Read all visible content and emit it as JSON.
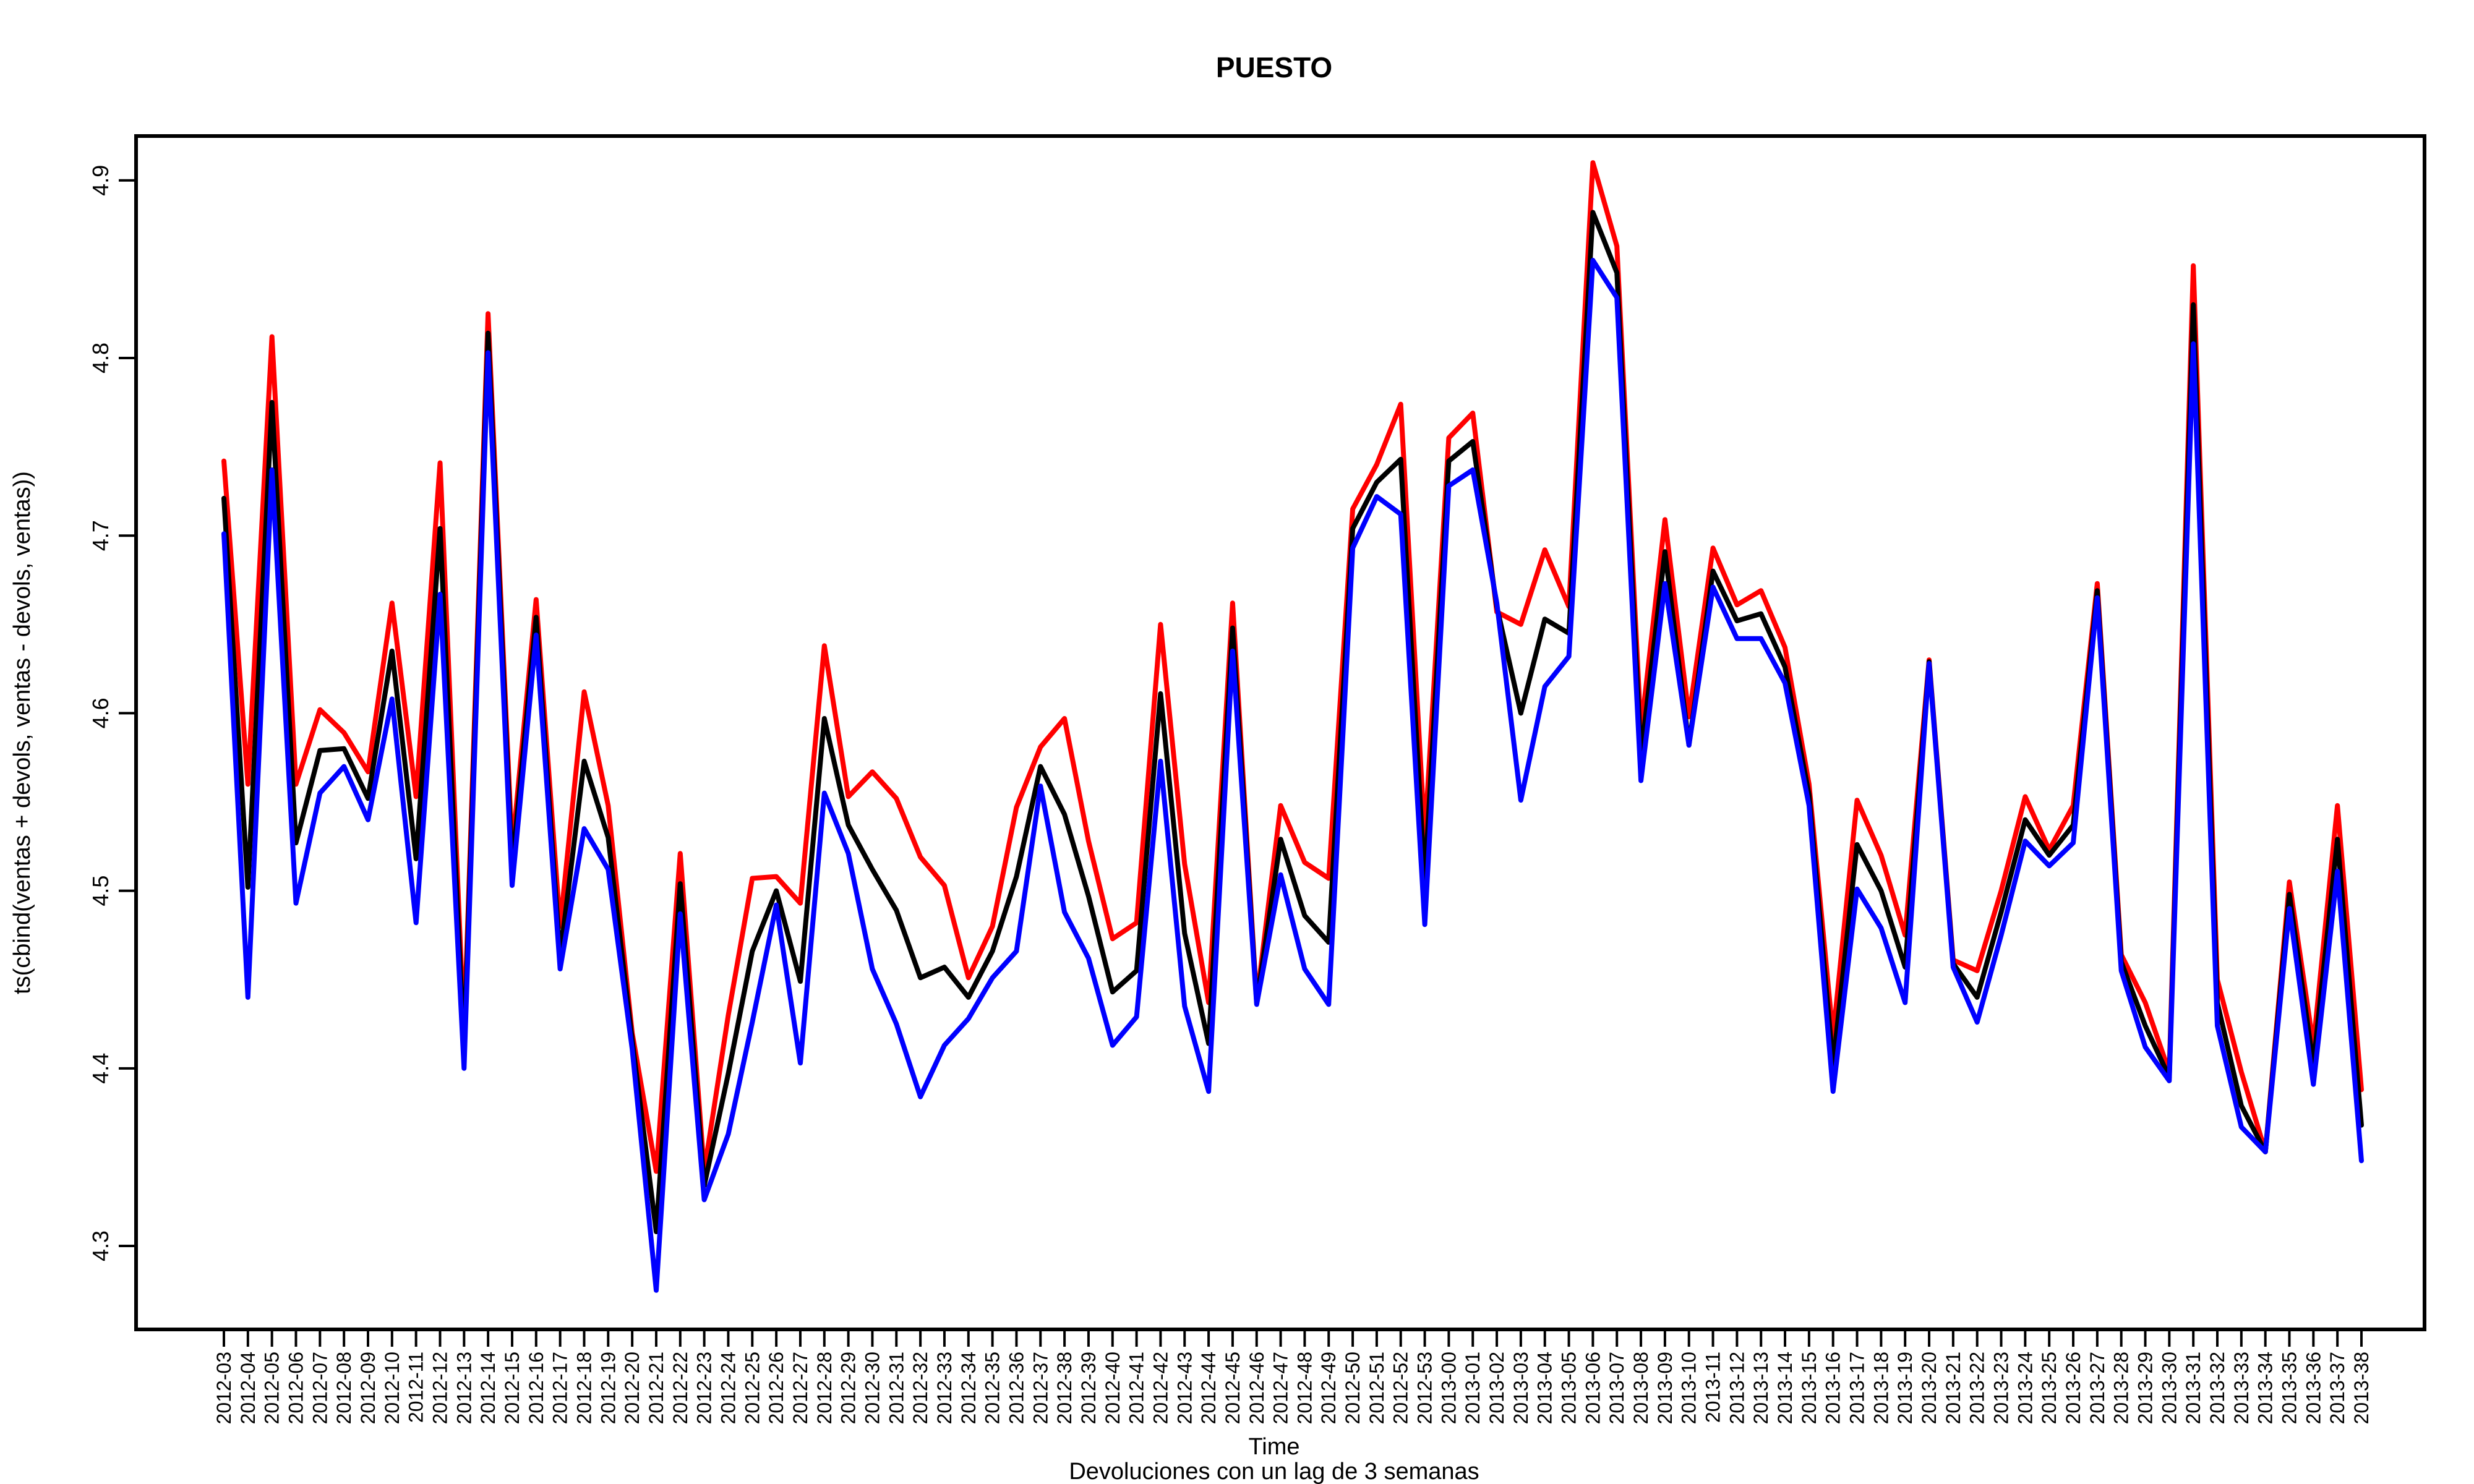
{
  "chart_data": {
    "type": "line",
    "title": "PUESTO",
    "xlabel": "Time",
    "ylabel": "ts(cbind(ventas + devols, ventas - devols, ventas))",
    "subtitle": "Devoluciones con un lag de 3 semanas",
    "ylim": [
      4.253,
      4.925
    ],
    "y_ticks": [
      4.3,
      4.4,
      4.5,
      4.6,
      4.7,
      4.8,
      4.9
    ],
    "x_tick_labels": [
      "2012-03",
      "2012-04",
      "2012-05",
      "2012-06",
      "2012-07",
      "2012-08",
      "2012-09",
      "2012-10",
      "2012-11",
      "2012-12",
      "2012-13",
      "2012-14",
      "2012-15",
      "2012-16",
      "2012-17",
      "2012-18",
      "2012-19",
      "2012-20",
      "2012-21",
      "2012-22",
      "2012-23",
      "2012-24",
      "2012-25",
      "2012-26",
      "2012-27",
      "2012-28",
      "2012-29",
      "2012-30",
      "2012-31",
      "2012-32",
      "2012-33",
      "2012-34",
      "2012-35",
      "2012-36",
      "2012-37",
      "2012-38",
      "2012-39",
      "2012-40",
      "2012-41",
      "2012-42",
      "2012-43",
      "2012-44",
      "2012-45",
      "2012-46",
      "2012-47",
      "2012-48",
      "2012-49",
      "2012-50",
      "2012-51",
      "2012-52",
      "2012-53",
      "2013-00",
      "2013-01",
      "2013-02",
      "2013-03",
      "2013-04",
      "2013-05",
      "2013-06",
      "2013-07",
      "2013-08",
      "2013-09",
      "2013-10",
      "2013-11",
      "2013-12",
      "2013-13",
      "2013-14",
      "2013-15",
      "2013-16",
      "2013-17",
      "2013-18",
      "2013-19",
      "2013-20",
      "2013-21",
      "2013-22",
      "2013-23",
      "2013-24",
      "2013-25",
      "2013-26",
      "2013-27",
      "2013-28",
      "2013-29",
      "2013-30",
      "2013-31",
      "2013-32",
      "2013-33",
      "2013-34",
      "2013-35",
      "2013-36",
      "2013-37",
      "2013-38"
    ],
    "grid": false,
    "legend": "none",
    "series": [
      {
        "color": "#ff0000",
        "values": [
          4.742,
          4.56,
          4.812,
          4.56,
          4.602,
          4.589,
          4.567,
          4.662,
          4.553,
          4.741,
          4.42,
          4.825,
          4.523,
          4.664,
          4.48,
          4.612,
          4.548,
          4.42,
          4.342,
          4.521,
          4.342,
          4.43,
          4.507,
          4.508,
          4.493,
          4.638,
          4.553,
          4.567,
          4.552,
          4.519,
          4.503,
          4.451,
          4.48,
          4.547,
          4.581,
          4.597,
          4.528,
          4.473,
          4.482,
          4.65,
          4.515,
          4.437,
          4.662,
          4.438,
          4.548,
          4.516,
          4.507,
          4.715,
          4.74,
          4.774,
          4.53,
          4.755,
          4.769,
          4.657,
          4.65,
          4.692,
          4.66,
          4.91,
          4.863,
          4.59,
          4.709,
          4.598,
          4.693,
          4.661,
          4.669,
          4.637,
          4.56,
          4.418,
          4.551,
          4.52,
          4.475,
          4.63,
          4.461,
          4.455,
          4.5,
          4.553,
          4.523,
          4.548,
          4.673,
          4.464,
          4.437,
          4.398,
          4.852,
          4.45,
          4.398,
          4.353,
          4.505,
          4.413,
          4.548,
          4.388
        ]
      },
      {
        "color": "#000000",
        "values": [
          4.721,
          4.502,
          4.775,
          4.527,
          4.579,
          4.58,
          4.552,
          4.635,
          4.518,
          4.704,
          4.41,
          4.814,
          4.513,
          4.654,
          4.463,
          4.573,
          4.53,
          4.416,
          4.308,
          4.504,
          4.334,
          4.397,
          4.466,
          4.5,
          4.449,
          4.597,
          4.537,
          4.512,
          4.489,
          4.451,
          4.457,
          4.44,
          4.466,
          4.508,
          4.57,
          4.543,
          4.497,
          4.443,
          4.455,
          4.611,
          4.476,
          4.414,
          4.648,
          4.437,
          4.529,
          4.486,
          4.471,
          4.704,
          4.73,
          4.743,
          4.505,
          4.742,
          4.753,
          4.66,
          4.6,
          4.653,
          4.645,
          4.882,
          4.848,
          4.576,
          4.691,
          4.582,
          4.68,
          4.652,
          4.656,
          4.626,
          4.554,
          4.402,
          4.526,
          4.5,
          4.457,
          4.629,
          4.459,
          4.44,
          4.488,
          4.54,
          4.52,
          4.537,
          4.669,
          4.46,
          4.424,
          4.395,
          4.83,
          4.437,
          4.379,
          4.353,
          4.498,
          4.402,
          4.529,
          4.368
        ]
      },
      {
        "color": "#0000ff",
        "values": [
          4.701,
          4.44,
          4.737,
          4.493,
          4.555,
          4.57,
          4.54,
          4.608,
          4.482,
          4.667,
          4.4,
          4.803,
          4.503,
          4.644,
          4.456,
          4.535,
          4.512,
          4.411,
          4.275,
          4.487,
          4.326,
          4.363,
          4.426,
          4.492,
          4.403,
          4.555,
          4.521,
          4.456,
          4.425,
          4.384,
          4.413,
          4.428,
          4.451,
          4.466,
          4.559,
          4.488,
          4.462,
          4.413,
          4.429,
          4.573,
          4.435,
          4.387,
          4.635,
          4.436,
          4.509,
          4.456,
          4.436,
          4.693,
          4.722,
          4.712,
          4.481,
          4.728,
          4.737,
          4.662,
          4.551,
          4.615,
          4.632,
          4.855,
          4.834,
          4.562,
          4.673,
          4.582,
          4.671,
          4.642,
          4.642,
          4.617,
          4.548,
          4.387,
          4.501,
          4.479,
          4.437,
          4.628,
          4.457,
          4.426,
          4.475,
          4.528,
          4.514,
          4.527,
          4.665,
          4.455,
          4.412,
          4.393,
          4.808,
          4.424,
          4.367,
          4.353,
          4.49,
          4.391,
          4.511,
          4.348
        ]
      }
    ]
  }
}
